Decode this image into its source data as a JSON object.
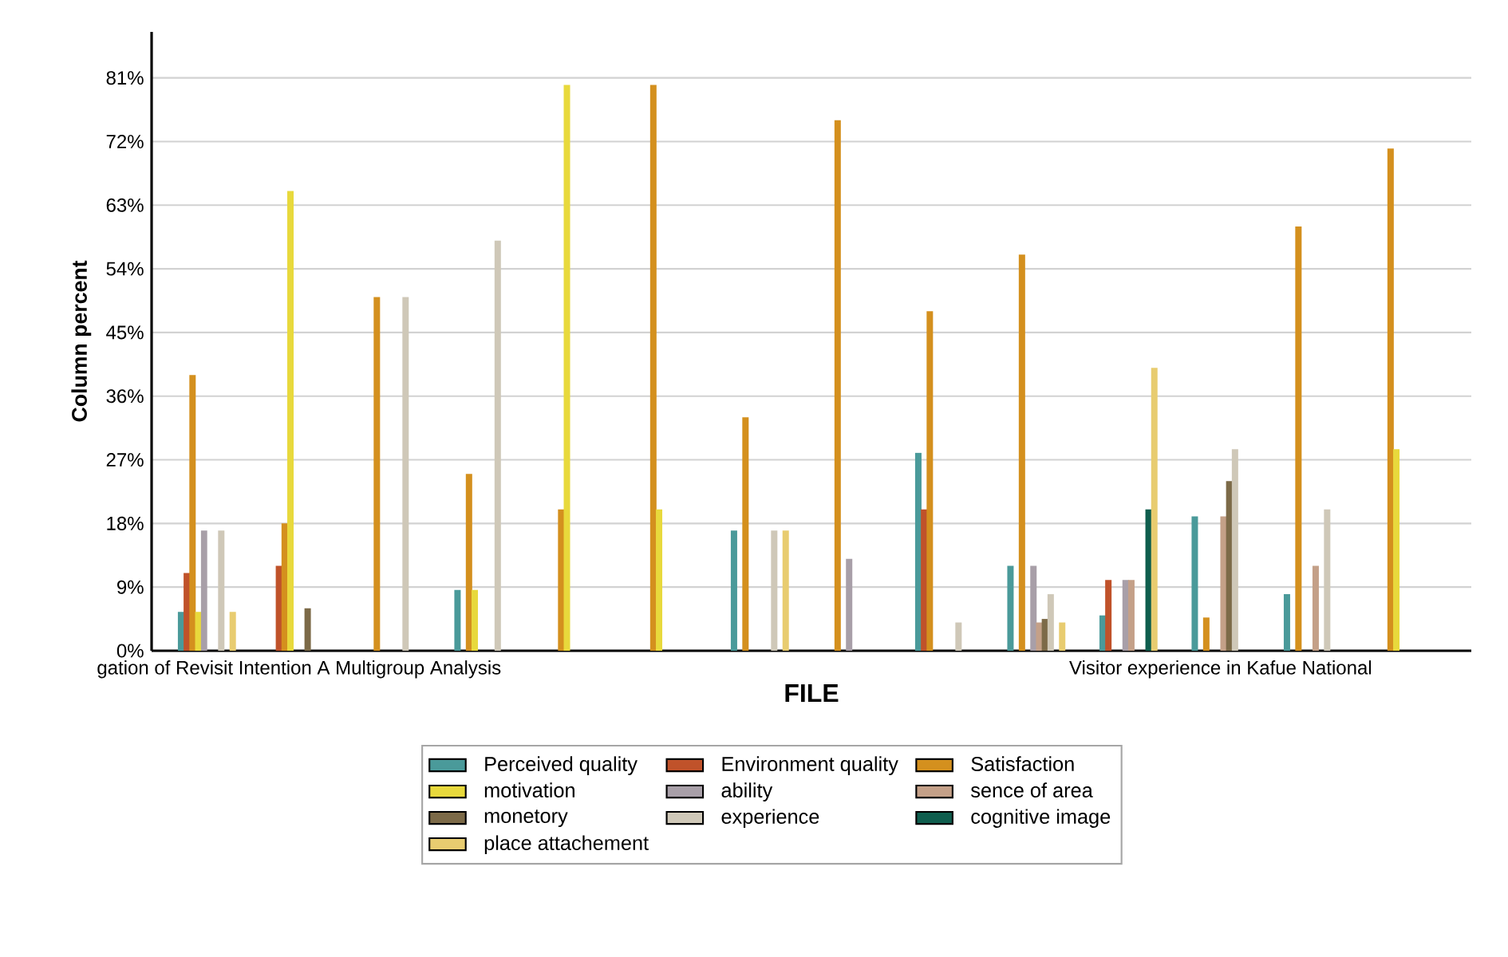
{
  "chart_data": {
    "type": "bar",
    "xlabel": "FILE",
    "ylabel": "Column percent",
    "categories": [
      null,
      "gation of Revisit Intention A Multigroup Analysis",
      null,
      null,
      null,
      null,
      null,
      null,
      null,
      null,
      null,
      "Visitor experience in Kafue National",
      null,
      null
    ],
    "series": [
      {
        "name": "Perceived quality",
        "color": "#4a9a9a",
        "values": [
          5.5,
          0,
          0,
          8.6,
          0,
          0,
          17,
          0,
          28,
          12,
          5,
          19,
          8,
          0
        ]
      },
      {
        "name": "Environment quality",
        "color": "#c0522a",
        "values": [
          11,
          12,
          0,
          0,
          0,
          0,
          0,
          0,
          20,
          0,
          10,
          0,
          0,
          0
        ]
      },
      {
        "name": "Satisfaction",
        "color": "#d4901e",
        "values": [
          39,
          18,
          50,
          25,
          20,
          80,
          33,
          75,
          48,
          56,
          0,
          4.7,
          60,
          71
        ]
      },
      {
        "name": "motivation",
        "color": "#e8d93c",
        "values": [
          5.5,
          65,
          0,
          8.6,
          80,
          20,
          0,
          0,
          0,
          0,
          0,
          0,
          0,
          28.5
        ]
      },
      {
        "name": "ability",
        "color": "#a89fa8",
        "values": [
          17,
          0,
          0,
          0,
          0,
          0,
          0,
          13,
          0,
          12,
          10,
          0,
          0,
          0
        ]
      },
      {
        "name": "sence of area",
        "color": "#c4a088",
        "values": [
          0,
          0,
          0,
          0,
          0,
          0,
          0,
          0,
          0,
          4,
          10,
          19,
          12,
          0
        ]
      },
      {
        "name": "monetory",
        "color": "#7c6a48",
        "values": [
          0,
          6,
          0,
          0,
          0,
          0,
          0,
          0,
          0,
          4.5,
          0,
          24,
          0,
          0
        ]
      },
      {
        "name": "experience",
        "color": "#cfc8b8",
        "values": [
          17,
          0,
          50,
          58,
          0,
          0,
          17,
          0,
          4,
          8,
          0,
          28.5,
          20,
          0
        ]
      },
      {
        "name": "cognitive image",
        "color": "#0f5e4e",
        "values": [
          0,
          0,
          0,
          0,
          0,
          0,
          0,
          0,
          0,
          0,
          20,
          0,
          0,
          0
        ]
      },
      {
        "name": "place attachement",
        "color": "#e8cc70",
        "values": [
          5.5,
          0,
          0,
          0,
          0,
          0,
          17,
          0,
          0,
          4,
          40,
          0,
          0,
          0
        ]
      }
    ],
    "ylim": [
      0,
      87.5
    ],
    "yticks": [
      {
        "value": 0,
        "label": "0%"
      },
      {
        "value": 9,
        "label": "9%"
      },
      {
        "value": 18,
        "label": "18%"
      },
      {
        "value": 27,
        "label": "27%"
      },
      {
        "value": 36,
        "label": "36%"
      },
      {
        "value": 45,
        "label": "45%"
      },
      {
        "value": 54,
        "label": "54%"
      },
      {
        "value": 63,
        "label": "63%"
      },
      {
        "value": 72,
        "label": "72%"
      },
      {
        "value": 81,
        "label": "81%"
      }
    ],
    "grid": "y",
    "legend": "bottom"
  }
}
